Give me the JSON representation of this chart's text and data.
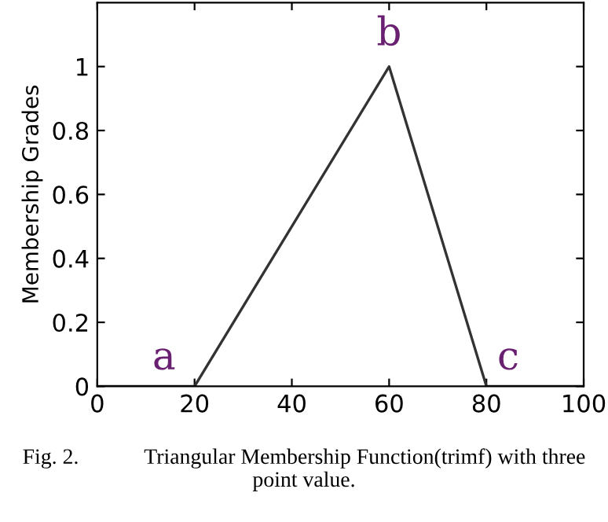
{
  "chart_data": {
    "type": "line",
    "ylabel": "Membership Grades",
    "x": [
      0,
      20,
      60,
      80,
      100
    ],
    "series": [
      {
        "color": "#333333",
        "values": [
          0,
          0,
          1,
          0,
          0
        ]
      }
    ],
    "xlim": [
      0,
      100
    ],
    "xticks": [
      0,
      20,
      40,
      60,
      80,
      100
    ],
    "ylim": [
      0,
      1.2
    ],
    "yticks": [
      0,
      0.2,
      0.4,
      0.6,
      0.8,
      1
    ],
    "grid": false,
    "legend": false,
    "marker": "none",
    "line_style": "solid",
    "annotations": [
      {
        "text": "a",
        "x": 20,
        "y": 0
      },
      {
        "text": "b",
        "x": 60,
        "y": 1
      },
      {
        "text": "c",
        "x": 80,
        "y": 0
      },
      "Fig. 2.            Triangular Membership Function(trimf) with three point value."
    ]
  }
}
